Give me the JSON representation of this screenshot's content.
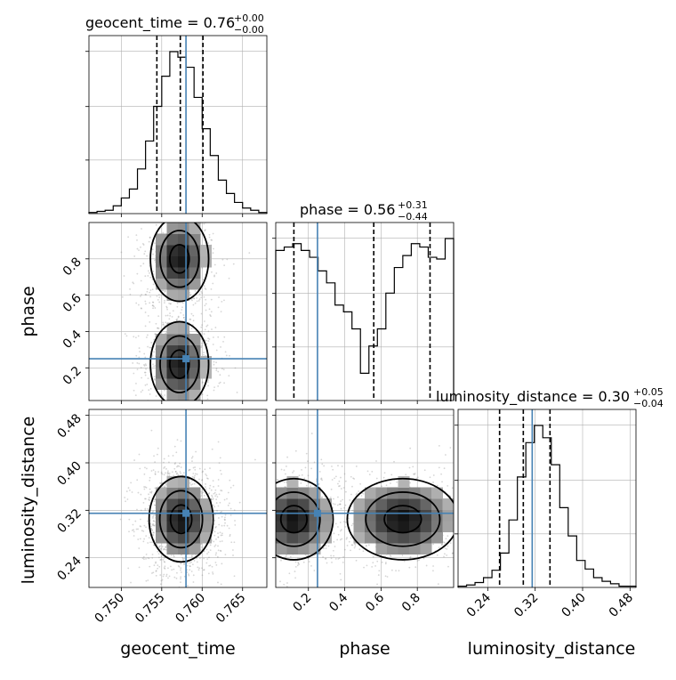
{
  "chart_data": {
    "type": "corner",
    "parameters": [
      "geocent_time",
      "phase",
      "luminosity_distance"
    ],
    "axis_labels": {
      "geocent_time": "geocent_time",
      "phase": "phase",
      "luminosity_distance": "luminosity_distance"
    },
    "truths": {
      "geocent_time": 0.758,
      "phase": 0.25,
      "luminosity_distance": 0.315
    },
    "truth_color": "#4682b4",
    "grid": true,
    "titles": [
      {
        "param": "geocent_time",
        "text": "geocent_time = 0.76",
        "plus": "+0.00",
        "minus": "−0.00"
      },
      {
        "param": "phase",
        "text": "phase = 0.56",
        "plus": "+0.31",
        "minus": "−0.44"
      },
      {
        "param": "luminosity_distance",
        "text": "luminosity_distance = 0.30",
        "plus": "+0.05",
        "minus": "−0.04"
      }
    ],
    "ranges": {
      "geocent_time": [
        0.746,
        0.768
      ],
      "phase": [
        0.02,
        1.0
      ],
      "luminosity_distance": [
        0.19,
        0.49
      ]
    },
    "ticks": {
      "geocent_time": [
        "0.750",
        "0.755",
        "0.760",
        "0.765"
      ],
      "phase_x": [
        "0.2",
        "0.4",
        "0.6",
        "0.8"
      ],
      "phase_y": [
        "0.2",
        "0.4",
        "0.6",
        "0.8"
      ],
      "luminosity_distance_x": [
        "0.24",
        "0.32",
        "0.40",
        "0.48"
      ],
      "luminosity_distance_y": [
        "0.24",
        "0.32",
        "0.40",
        "0.48"
      ]
    },
    "histograms": {
      "geocent_time": {
        "bins": [
          0.746,
          0.768
        ],
        "counts": [
          1,
          2,
          3,
          7,
          14,
          22,
          40,
          65,
          96,
          123,
          145,
          140,
          131,
          104,
          76,
          52,
          30,
          18,
          10,
          5,
          3,
          1
        ],
        "quantiles": [
          0.7544,
          0.7573,
          0.7601
        ]
      },
      "phase": {
        "bins": [
          0.02,
          1.0
        ],
        "counts": [
          88,
          90,
          92,
          88,
          84,
          76,
          69,
          56,
          52,
          42,
          16,
          32,
          42,
          63,
          78,
          85,
          92,
          90,
          84,
          83,
          95
        ],
        "quantiles": [
          0.12,
          0.56,
          0.87
        ]
      },
      "luminosity_distance": {
        "bins": [
          0.19,
          0.49
        ],
        "counts": [
          1,
          2,
          4,
          8,
          14,
          28,
          55,
          90,
          118,
          132,
          122,
          100,
          65,
          42,
          22,
          15,
          8,
          5,
          3,
          1,
          1
        ],
        "quantiles": [
          0.26,
          0.3,
          0.345
        ]
      }
    },
    "contours_2d": [
      {
        "x": "geocent_time",
        "y": "phase",
        "modes": [
          {
            "center": [
              0.7572,
              0.8
            ],
            "sigma": [
              0.002,
              0.13
            ]
          },
          {
            "center": [
              0.7572,
              0.22
            ],
            "sigma": [
              0.002,
              0.13
            ]
          }
        ]
      },
      {
        "x": "geocent_time",
        "y": "luminosity_distance",
        "modes": [
          {
            "center": [
              0.7574,
              0.305
            ],
            "sigma": [
              0.0022,
              0.04
            ]
          }
        ]
      },
      {
        "x": "phase",
        "y": "luminosity_distance",
        "modes": [
          {
            "center": [
              0.12,
              0.305
            ],
            "sigma": [
              0.12,
              0.038
            ]
          },
          {
            "center": [
              0.72,
              0.305
            ],
            "sigma": [
              0.17,
              0.038
            ]
          }
        ]
      }
    ]
  }
}
